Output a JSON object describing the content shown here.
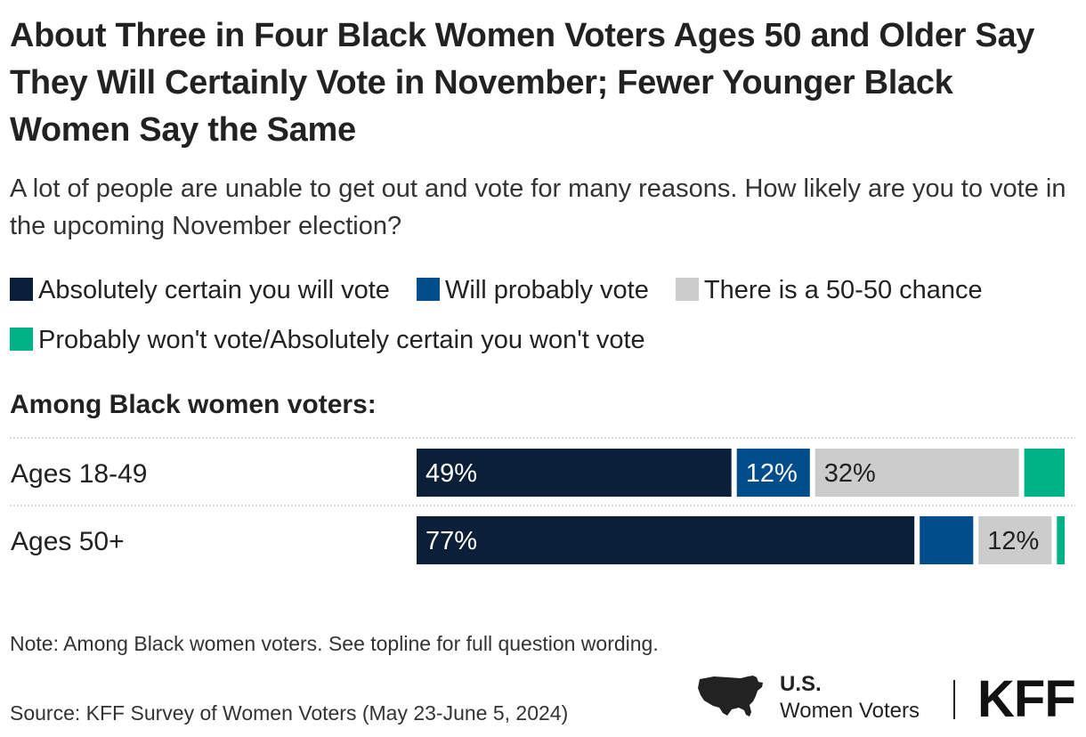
{
  "chart_data": {
    "type": "bar",
    "orientation": "horizontal",
    "stacked": true,
    "title": "About Three in Four Black Women Voters Ages 50 and Older Say They Will Certainly Vote in November; Fewer Younger Black Women Say the Same",
    "subtitle": "A lot of people are unable to get out and vote for many reasons. How likely are you to vote in the upcoming November election?",
    "group_label": "Among Black women voters:",
    "categories": [
      "Ages 18-49",
      "Ages 50+"
    ],
    "series": [
      {
        "name": "Absolutely certain you will vote",
        "color": "#0b1f38",
        "values": [
          49,
          77
        ],
        "labels": [
          "49%",
          "77%"
        ],
        "label_color": "#ffffff"
      },
      {
        "name": "Will probably vote",
        "color": "#004d8b",
        "values": [
          12,
          9
        ],
        "labels": [
          "12%",
          ""
        ],
        "label_color": "#ffffff"
      },
      {
        "name": "There is a 50-50 chance",
        "color": "#cccccc",
        "values": [
          32,
          12
        ],
        "labels": [
          "32%",
          "12%"
        ],
        "label_color": "#222222"
      },
      {
        "name": "Probably won't vote/Absolutely certain you won't vote",
        "color": "#00b386",
        "values": [
          7,
          2
        ],
        "labels": [
          "",
          ""
        ],
        "label_color": "#222222"
      }
    ],
    "xlim": [
      0,
      100
    ]
  },
  "note": "Note: Among Black women voters. See topline for full question wording.",
  "source": "Source: KFF Survey of Women Voters (May 23-June 5, 2024)",
  "brand": {
    "line1": "U.S.",
    "line2": "Women Voters",
    "logo": "KFF",
    "map_icon": "us-map-icon"
  }
}
